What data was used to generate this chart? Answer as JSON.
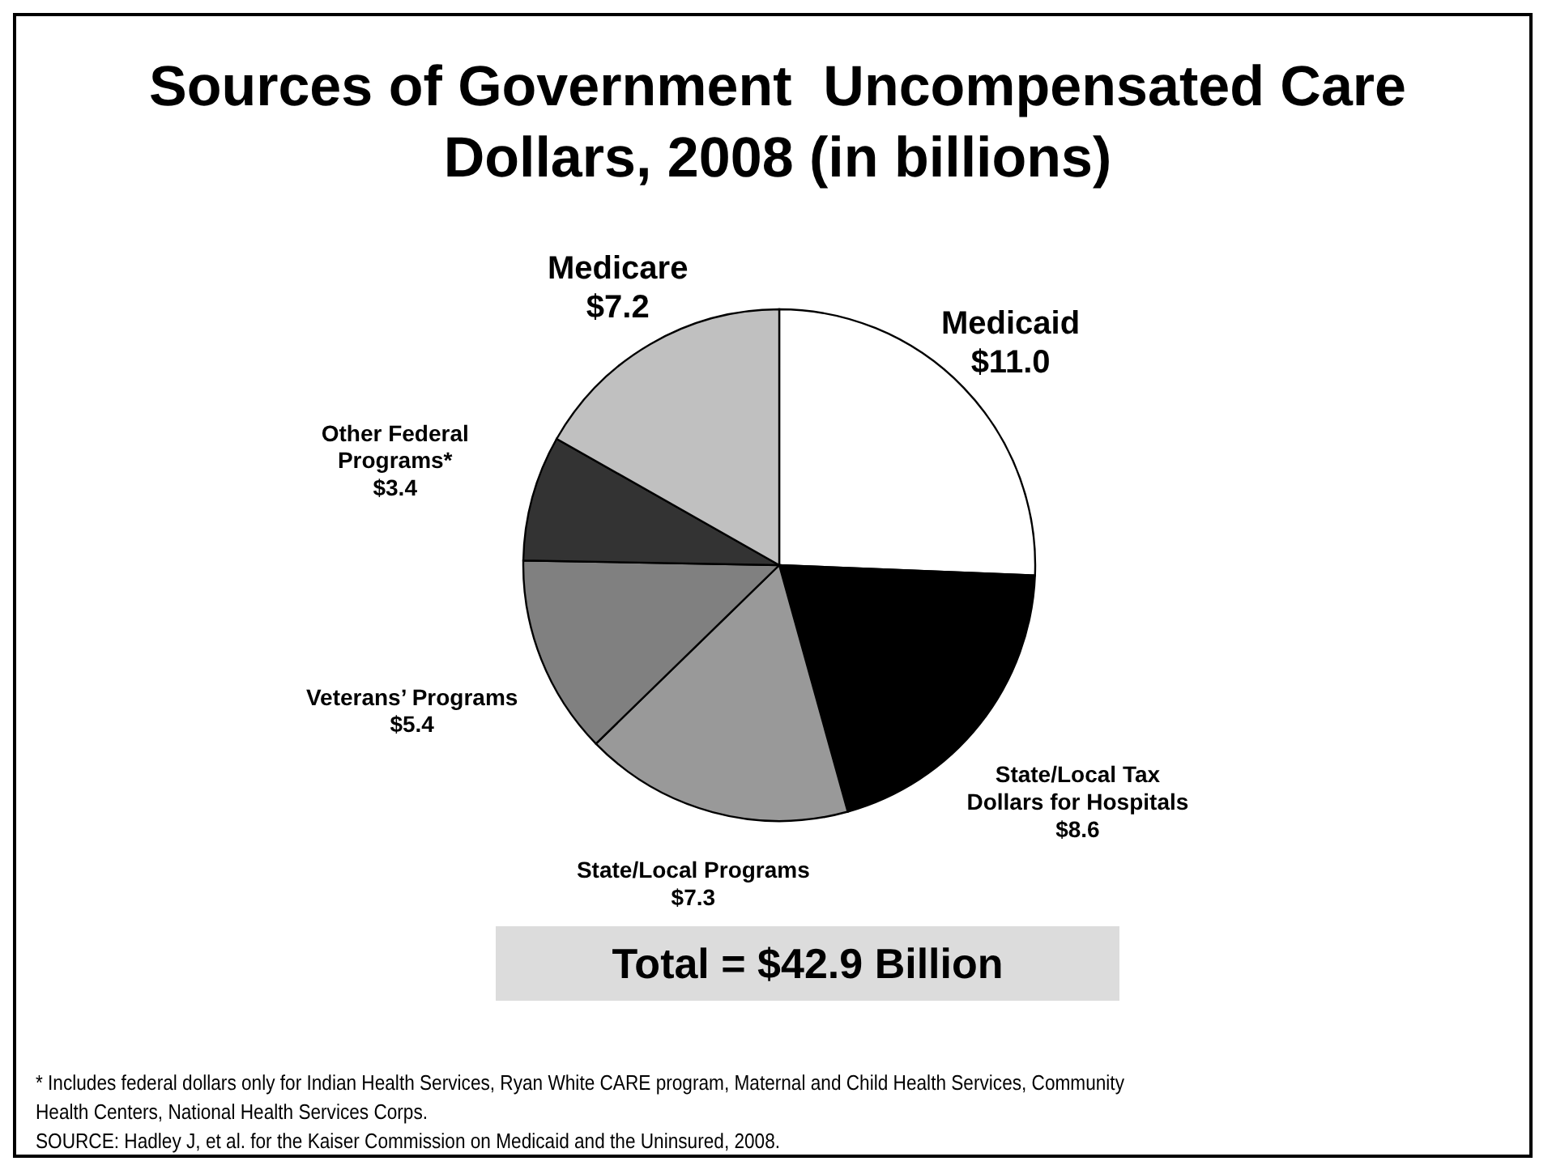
{
  "chart_data": {
    "type": "pie",
    "title": "Sources of Government  Uncompensated Care Dollars, 2008 (in billions)",
    "categories": [
      "Medicaid",
      "State/Local Tax Dollars for Hospitals",
      "State/Local Programs",
      "Veterans’ Programs",
      "Other Federal Programs*",
      "Medicare"
    ],
    "values": [
      11.0,
      8.6,
      7.3,
      5.4,
      3.4,
      7.2
    ],
    "value_labels": [
      "$11.0",
      "$8.6",
      "$7.3",
      "$5.4",
      "$3.4",
      "$7.2"
    ],
    "colors": [
      "#ffffff",
      "#000000",
      "#999999",
      "#808080",
      "#333333",
      "#c0c0c0"
    ],
    "legend": false,
    "annotations": [
      "Total = $42.9 Billion",
      "* Includes federal dollars only for Indian Health Services, Ryan White CARE program, Maternal and Child Health Services, Community Health Centers, National Health Services Corps.",
      "SOURCE:  Hadley J, et al. for the Kaiser Commission on Medicaid and the Uninsured, 2008."
    ]
  }
}
